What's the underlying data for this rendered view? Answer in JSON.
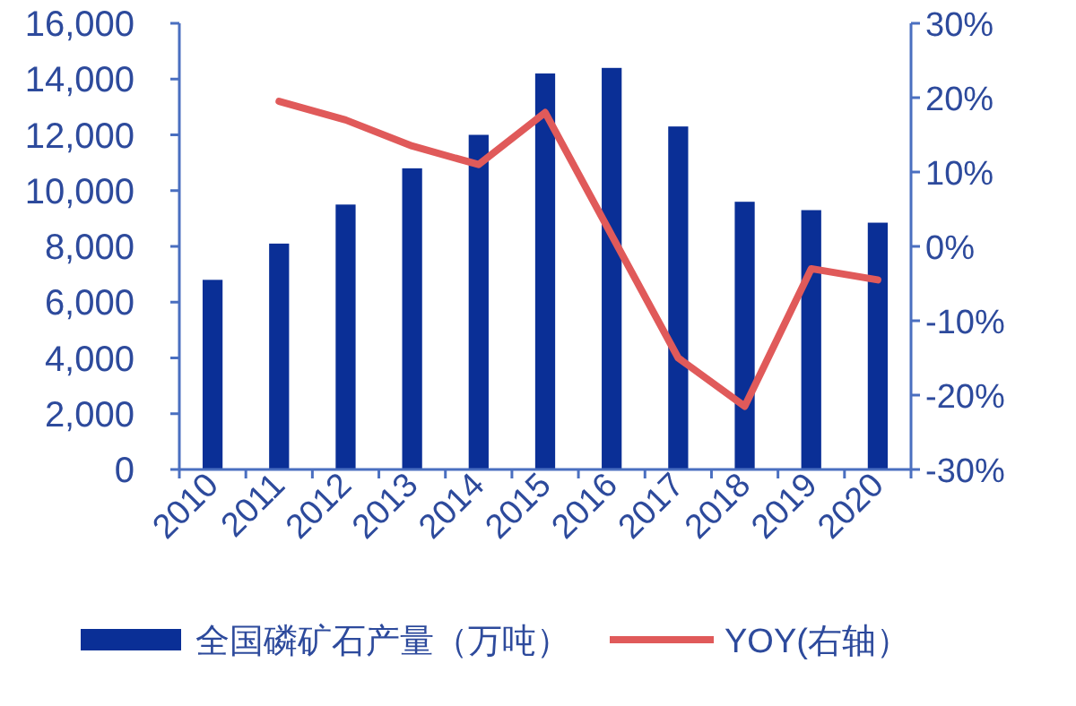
{
  "chart_data": {
    "type": "bar",
    "categories": [
      "2010",
      "2011",
      "2012",
      "2013",
      "2014",
      "2015",
      "2016",
      "2017",
      "2018",
      "2019",
      "2020"
    ],
    "series": [
      {
        "name": "全国磷矿石产量（万吨）",
        "color": "#0a2f96",
        "values": [
          6800,
          8100,
          9500,
          10800,
          12000,
          14200,
          14400,
          12300,
          9600,
          9300,
          8850
        ]
      },
      {
        "name": "YOY(右轴）",
        "type": "line",
        "axis": "y2",
        "color": "#e05a5a",
        "values": [
          null,
          19.5,
          17,
          13.5,
          11,
          18,
          1.5,
          -15,
          -21.5,
          -3,
          -4.5
        ]
      }
    ],
    "ylim": [
      0,
      16000
    ],
    "yticks": [
      {
        "value": 0,
        "label": "0"
      },
      {
        "value": 2000,
        "label": "2,000"
      },
      {
        "value": 4000,
        "label": "4,000"
      },
      {
        "value": 6000,
        "label": "6,000"
      },
      {
        "value": 8000,
        "label": "8,000"
      },
      {
        "value": 10000,
        "label": "10,000"
      },
      {
        "value": 12000,
        "label": "12,000"
      },
      {
        "value": 14000,
        "label": "14,000"
      },
      {
        "value": 16000,
        "label": "16,000"
      }
    ],
    "y2lim": [
      -30,
      30
    ],
    "y2ticks": [
      {
        "value": -30,
        "label": "-30%"
      },
      {
        "value": -20,
        "label": "-20%"
      },
      {
        "value": -10,
        "label": "-10%"
      },
      {
        "value": 0,
        "label": "0%"
      },
      {
        "value": 10,
        "label": "10%"
      },
      {
        "value": 20,
        "label": "20%"
      },
      {
        "value": 30,
        "label": "30%"
      }
    ],
    "grid": false,
    "legend": "bottom"
  }
}
